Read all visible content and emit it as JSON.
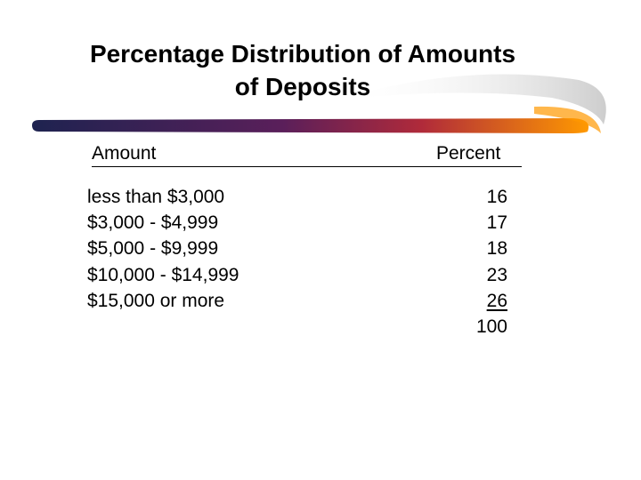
{
  "title_line1": "Percentage Distribution of Amounts",
  "title_line2": "of Deposits",
  "headers": {
    "amount": "Amount",
    "percent": "Percent"
  },
  "amounts": [
    "less than $3,000",
    "$3,000 - $4,999",
    "$5,000 - $9,999",
    "$10,000 - $14,999",
    "$15,000 or more"
  ],
  "percents": [
    "16",
    "17",
    "18",
    "23",
    "26"
  ],
  "total": "100",
  "colors": {
    "swoosh_left": "#1e2350",
    "swoosh_mid": "#8c1a4a",
    "swoosh_right": "#ff9900"
  }
}
